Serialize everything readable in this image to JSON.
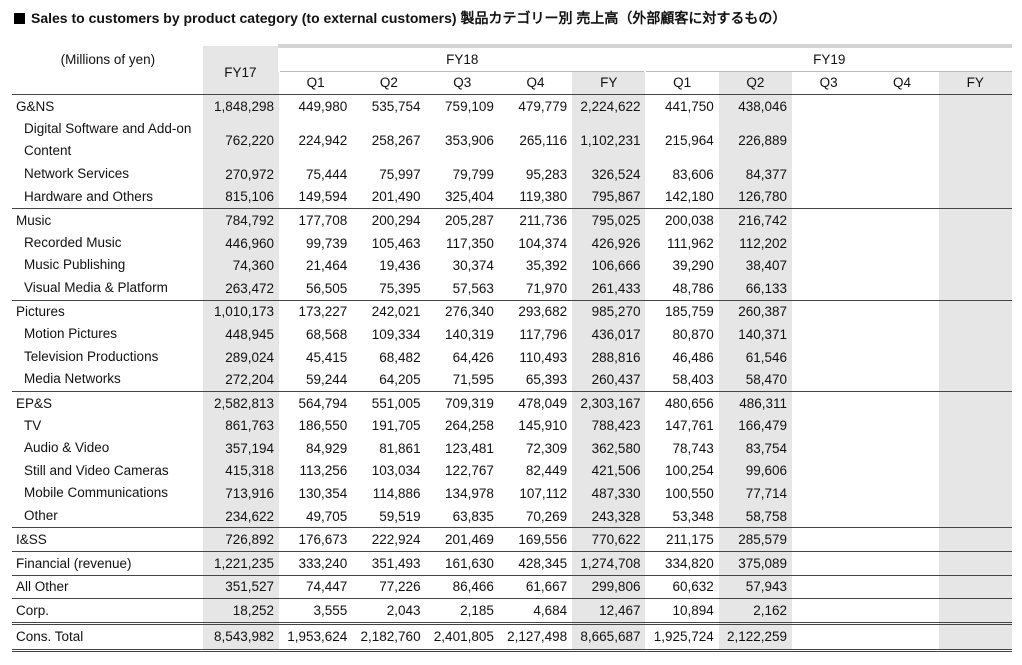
{
  "header": {
    "title": "Sales to customers by product category (to external customers) 製品カテゴリー別 売上高（外部顧客に対するもの）"
  },
  "table": {
    "unit": "(Millions of yen)",
    "fy17": "FY17",
    "fy18": {
      "label": "FY18",
      "sub": [
        "Q1",
        "Q2",
        "Q3",
        "Q4",
        "FY"
      ]
    },
    "fy19": {
      "label": "FY19",
      "sub": [
        "Q1",
        "Q2",
        "Q3",
        "Q4",
        "FY"
      ]
    },
    "segments": [
      {
        "label": "G&NS",
        "values": [
          "1,848,298",
          "449,980",
          "535,754",
          "759,109",
          "479,779",
          "2,224,622",
          "441,750",
          "438,046"
        ],
        "items": [
          {
            "label": "Digital Software and Add-on Content",
            "values": [
              "762,220",
              "224,942",
              "258,267",
              "353,906",
              "265,116",
              "1,102,231",
              "215,964",
              "226,889"
            ]
          },
          {
            "label": "Network Services",
            "values": [
              "270,972",
              "75,444",
              "75,997",
              "79,799",
              "95,283",
              "326,524",
              "83,606",
              "84,377"
            ]
          },
          {
            "label": "Hardware and Others",
            "values": [
              "815,106",
              "149,594",
              "201,490",
              "325,404",
              "119,380",
              "795,867",
              "142,180",
              "126,780"
            ]
          }
        ]
      },
      {
        "label": "Music",
        "values": [
          "784,792",
          "177,708",
          "200,294",
          "205,287",
          "211,736",
          "795,025",
          "200,038",
          "216,742"
        ],
        "items": [
          {
            "label": "Recorded Music",
            "values": [
              "446,960",
              "99,739",
              "105,463",
              "117,350",
              "104,374",
              "426,926",
              "111,962",
              "112,202"
            ]
          },
          {
            "label": "Music Publishing",
            "values": [
              "74,360",
              "21,464",
              "19,436",
              "30,374",
              "35,392",
              "106,666",
              "39,290",
              "38,407"
            ]
          },
          {
            "label": "Visual Media & Platform",
            "values": [
              "263,472",
              "56,505",
              "75,395",
              "57,563",
              "71,970",
              "261,433",
              "48,786",
              "66,133"
            ]
          }
        ]
      },
      {
        "label": "Pictures",
        "values": [
          "1,010,173",
          "173,227",
          "242,021",
          "276,340",
          "293,682",
          "985,270",
          "185,759",
          "260,387"
        ],
        "items": [
          {
            "label": "Motion Pictures",
            "values": [
              "448,945",
              "68,568",
              "109,334",
              "140,319",
              "117,796",
              "436,017",
              "80,870",
              "140,371"
            ]
          },
          {
            "label": "Television Productions",
            "values": [
              "289,024",
              "45,415",
              "68,482",
              "64,426",
              "110,493",
              "288,816",
              "46,486",
              "61,546"
            ]
          },
          {
            "label": "Media Networks",
            "values": [
              "272,204",
              "59,244",
              "64,205",
              "71,595",
              "65,393",
              "260,437",
              "58,403",
              "58,470"
            ]
          }
        ]
      },
      {
        "label": "EP&S",
        "values": [
          "2,582,813",
          "564,794",
          "551,005",
          "709,319",
          "478,049",
          "2,303,167",
          "480,656",
          "486,311"
        ],
        "items": [
          {
            "label": "TV",
            "values": [
              "861,763",
              "186,550",
              "191,705",
              "264,258",
              "145,910",
              "788,423",
              "147,761",
              "166,479"
            ]
          },
          {
            "label": "Audio & Video",
            "values": [
              "357,194",
              "84,929",
              "81,861",
              "123,481",
              "72,309",
              "362,580",
              "78,743",
              "83,754"
            ]
          },
          {
            "label": "Still and Video Cameras",
            "values": [
              "415,318",
              "113,256",
              "103,034",
              "122,767",
              "82,449",
              "421,506",
              "100,254",
              "99,606"
            ]
          },
          {
            "label": "Mobile Communications",
            "values": [
              "713,916",
              "130,354",
              "114,886",
              "134,978",
              "107,112",
              "487,330",
              "100,550",
              "77,714"
            ]
          },
          {
            "label": "Other",
            "values": [
              "234,622",
              "49,705",
              "59,519",
              "63,835",
              "70,269",
              "243,328",
              "53,348",
              "58,758"
            ]
          }
        ]
      },
      {
        "label": "I&SS",
        "values": [
          "726,892",
          "176,673",
          "222,924",
          "201,469",
          "169,556",
          "770,622",
          "211,175",
          "285,579"
        ],
        "items": []
      },
      {
        "label": "Financial (revenue)",
        "values": [
          "1,221,235",
          "333,240",
          "351,493",
          "161,630",
          "428,345",
          "1,274,708",
          "334,820",
          "375,089"
        ],
        "items": []
      },
      {
        "label": "All Other",
        "values": [
          "351,527",
          "74,447",
          "77,226",
          "86,466",
          "61,667",
          "299,806",
          "60,632",
          "57,943"
        ],
        "items": []
      },
      {
        "label": "Corp.",
        "values": [
          "18,252",
          "3,555",
          "2,043",
          "2,185",
          "4,684",
          "12,467",
          "10,894",
          "2,162"
        ],
        "items": []
      }
    ],
    "total": {
      "label": "Cons. Total",
      "values": [
        "8,543,982",
        "1,953,624",
        "2,182,760",
        "2,401,805",
        "2,127,498",
        "8,665,687",
        "1,925,724",
        "2,122,259"
      ]
    }
  }
}
